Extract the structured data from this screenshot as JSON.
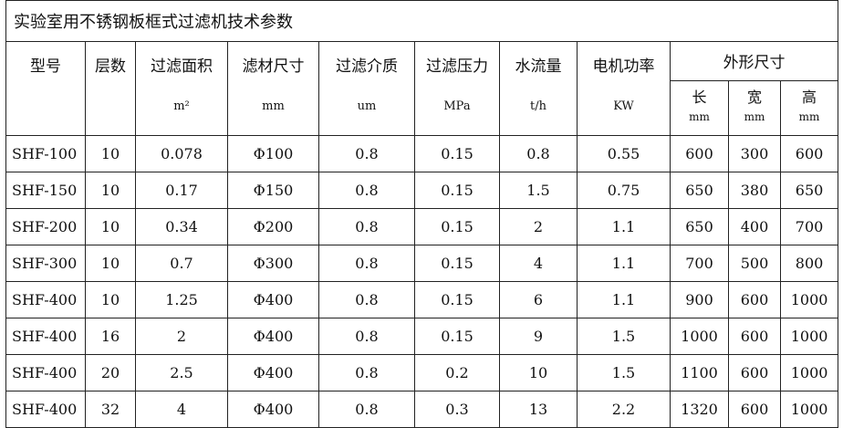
{
  "title": "实验室用不锈钢板框式过滤机技术参数",
  "headers": [
    {
      "label": "型号",
      "unit": ""
    },
    {
      "label": "层数",
      "unit": ""
    },
    {
      "label": "过滤面积",
      "unit": "m²"
    },
    {
      "label": "滤材尺寸",
      "unit": "mm"
    },
    {
      "label": "过滤介质",
      "unit": "um"
    },
    {
      "label": "过滤压力",
      "unit": "MPa"
    },
    {
      "label": "水流量",
      "unit": "t/h"
    },
    {
      "label": "电机功率",
      "unit": "KW"
    }
  ],
  "dimensions": {
    "label": "外形尺寸",
    "sub": [
      {
        "label": "长",
        "unit": "mm"
      },
      {
        "label": "宽",
        "unit": "mm"
      },
      {
        "label": "高",
        "unit": "mm"
      }
    ]
  },
  "rows": [
    [
      "SHF-100",
      "10",
      "0.078",
      "Φ100",
      "0.8",
      "0.15",
      "0.8",
      "0.55",
      "600",
      "300",
      "600"
    ],
    [
      "SHF-150",
      "10",
      "0.17",
      "Φ150",
      "0.8",
      "0.15",
      "1.5",
      "0.75",
      "650",
      "380",
      "650"
    ],
    [
      "SHF-200",
      "10",
      "0.34",
      "Φ200",
      "0.8",
      "0.15",
      "2",
      "1.1",
      "650",
      "400",
      "700"
    ],
    [
      "SHF-300",
      "10",
      "0.7",
      "Φ300",
      "0.8",
      "0.15",
      "4",
      "1.1",
      "700",
      "500",
      "800"
    ],
    [
      "SHF-400",
      "10",
      "1.25",
      "Φ400",
      "0.8",
      "0.15",
      "6",
      "1.1",
      "900",
      "600",
      "1000"
    ],
    [
      "SHF-400",
      "16",
      "2",
      "Φ400",
      "0.8",
      "0.15",
      "9",
      "1.5",
      "1000",
      "600",
      "1000"
    ],
    [
      "SHF-400",
      "20",
      "2.5",
      "Φ400",
      "0.8",
      "0.2",
      "10",
      "1.5",
      "1100",
      "600",
      "1000"
    ],
    [
      "SHF-400",
      "32",
      "4",
      "Φ400",
      "0.8",
      "0.3",
      "13",
      "2.2",
      "1320",
      "600",
      "1000"
    ]
  ]
}
